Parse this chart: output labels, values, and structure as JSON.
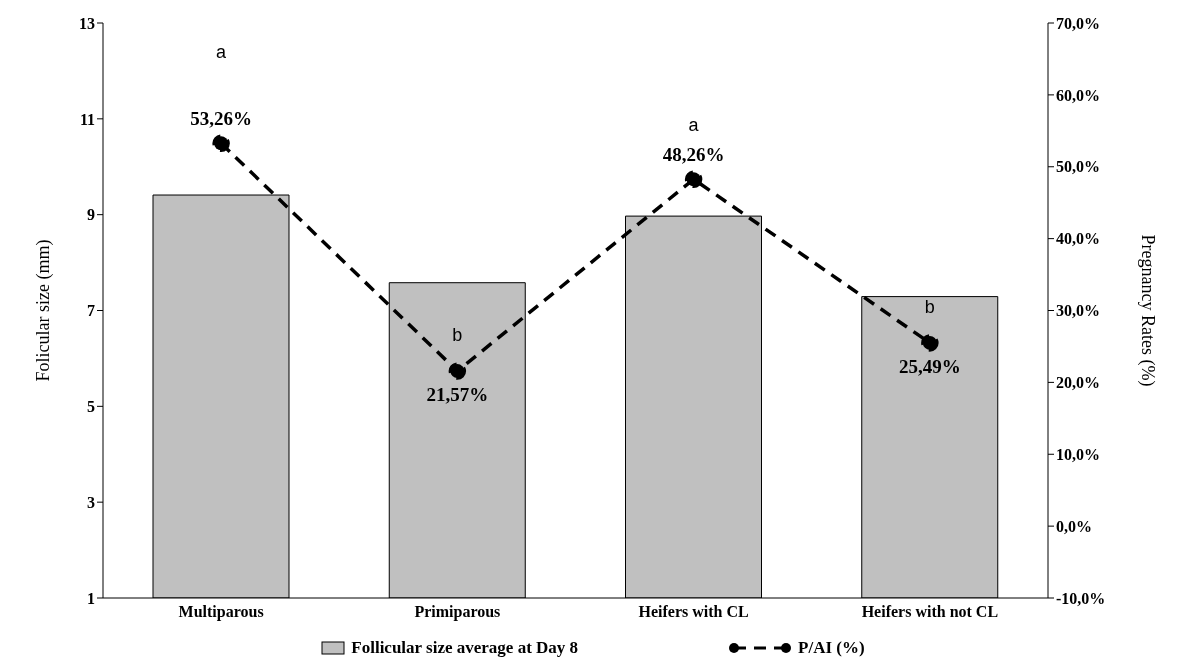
{
  "chart_data": {
    "type": "bar",
    "ylabel": "Folicular size (mm)",
    "y2label": "Pregnancy Rates (%)",
    "categories": [
      "Multiparous",
      "Primiparous",
      "Heifers with CL",
      "Heifers with not CL"
    ],
    "series": [
      {
        "name": "Follicular size average at Day 8",
        "color": "#c0c0c0",
        "values": [
          9.41,
          7.58,
          8.97,
          7.29
        ]
      },
      {
        "name": "P/AI (%)",
        "type": "line",
        "axis": "y2",
        "color": "#000000",
        "line_style": "dashed",
        "marker": "circle",
        "values": [
          53.26,
          21.57,
          48.26,
          25.49
        ],
        "value_labels": [
          "53,26%",
          "21,57%",
          "48,26%",
          "25,49%"
        ]
      }
    ],
    "ylim": [
      1,
      13
    ],
    "yticks": [
      1,
      3,
      5,
      7,
      9,
      11,
      13
    ],
    "y2lim": [
      -10,
      70
    ],
    "y2ticks": [
      {
        "value": -10,
        "label": "-10,0%"
      },
      {
        "value": 0,
        "label": "0,0%"
      },
      {
        "value": 10,
        "label": "10,0%"
      },
      {
        "value": 20,
        "label": "20,0%"
      },
      {
        "value": 30,
        "label": "30,0%"
      },
      {
        "value": 40,
        "label": "40,0%"
      },
      {
        "value": 50,
        "label": "50,0%"
      },
      {
        "value": 60,
        "label": "60,0%"
      },
      {
        "value": 70,
        "label": "70,0%"
      }
    ],
    "annotations": [
      "a",
      "b",
      "a",
      "b"
    ],
    "grid": false,
    "legend": "bottom"
  }
}
